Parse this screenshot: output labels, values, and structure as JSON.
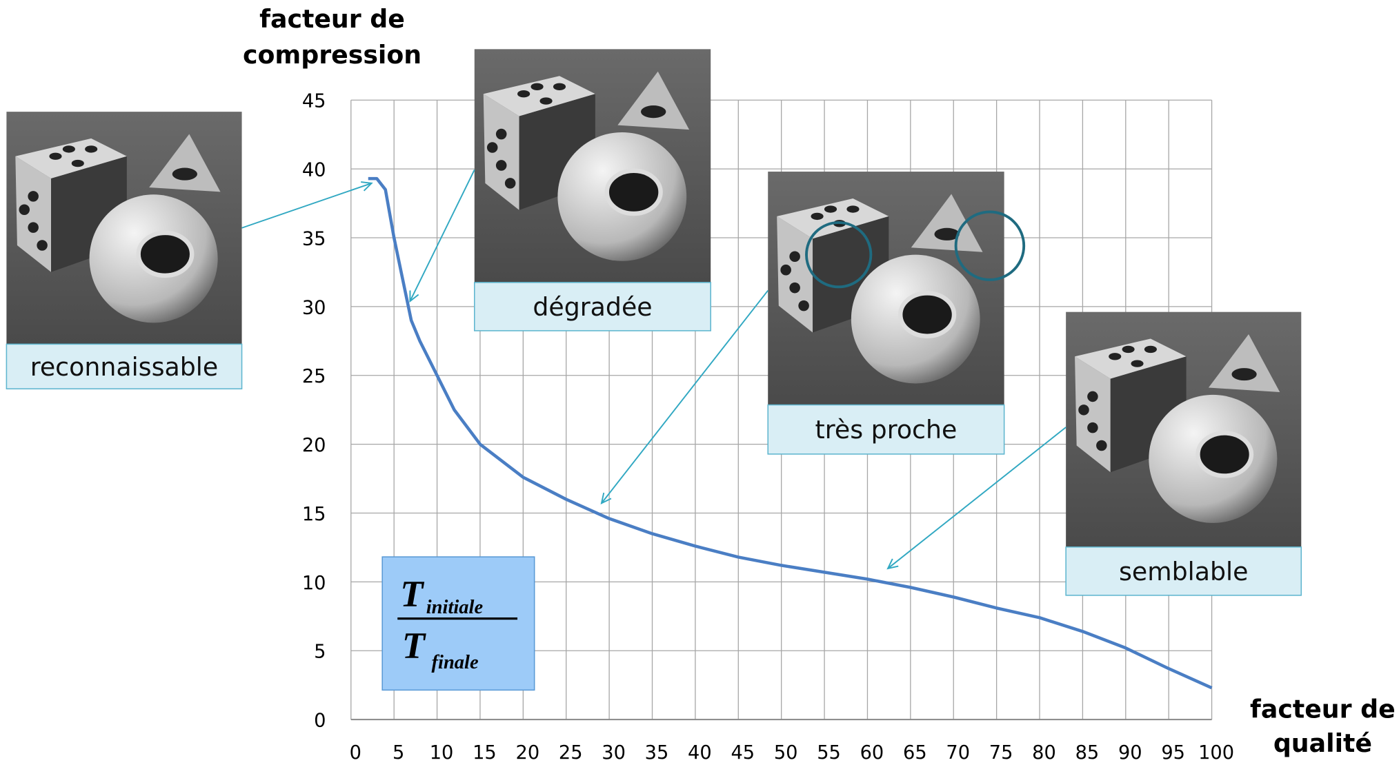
{
  "chart_data": {
    "type": "line",
    "y_label": [
      "facteur de",
      "compression"
    ],
    "x_label": [
      "facteur de",
      "qualité"
    ],
    "x": [
      2,
      3,
      4,
      5,
      6,
      7,
      8,
      10,
      12,
      15,
      20,
      25,
      30,
      35,
      40,
      45,
      50,
      55,
      60,
      65,
      70,
      75,
      80,
      85,
      90,
      95,
      100
    ],
    "values": [
      39.3,
      39.3,
      38.5,
      35,
      32,
      29,
      27.5,
      25,
      22.5,
      20,
      17.6,
      16,
      14.6,
      13.5,
      12.6,
      11.8,
      11.2,
      10.7,
      10.2,
      9.6,
      8.9,
      8.1,
      7.4,
      6.4,
      5.2,
      3.7,
      2.3
    ],
    "color": "#4a7ec4",
    "xlim": [
      0,
      100
    ],
    "xticks": [
      0,
      5,
      10,
      15,
      20,
      25,
      30,
      35,
      40,
      45,
      50,
      55,
      60,
      65,
      70,
      75,
      80,
      85,
      90,
      95,
      100
    ],
    "ylim": [
      0,
      45
    ],
    "yticks": [
      0,
      5,
      10,
      15,
      20,
      25,
      30,
      35,
      40,
      45
    ],
    "grid": true,
    "annotations": [
      "reconnaissable",
      "dégradée",
      "très proche",
      "semblable"
    ],
    "formula": {
      "numerator": {
        "symbol": "T",
        "subscript": "initiale"
      },
      "denominator": {
        "symbol": "T",
        "subscript": "finale"
      }
    }
  }
}
